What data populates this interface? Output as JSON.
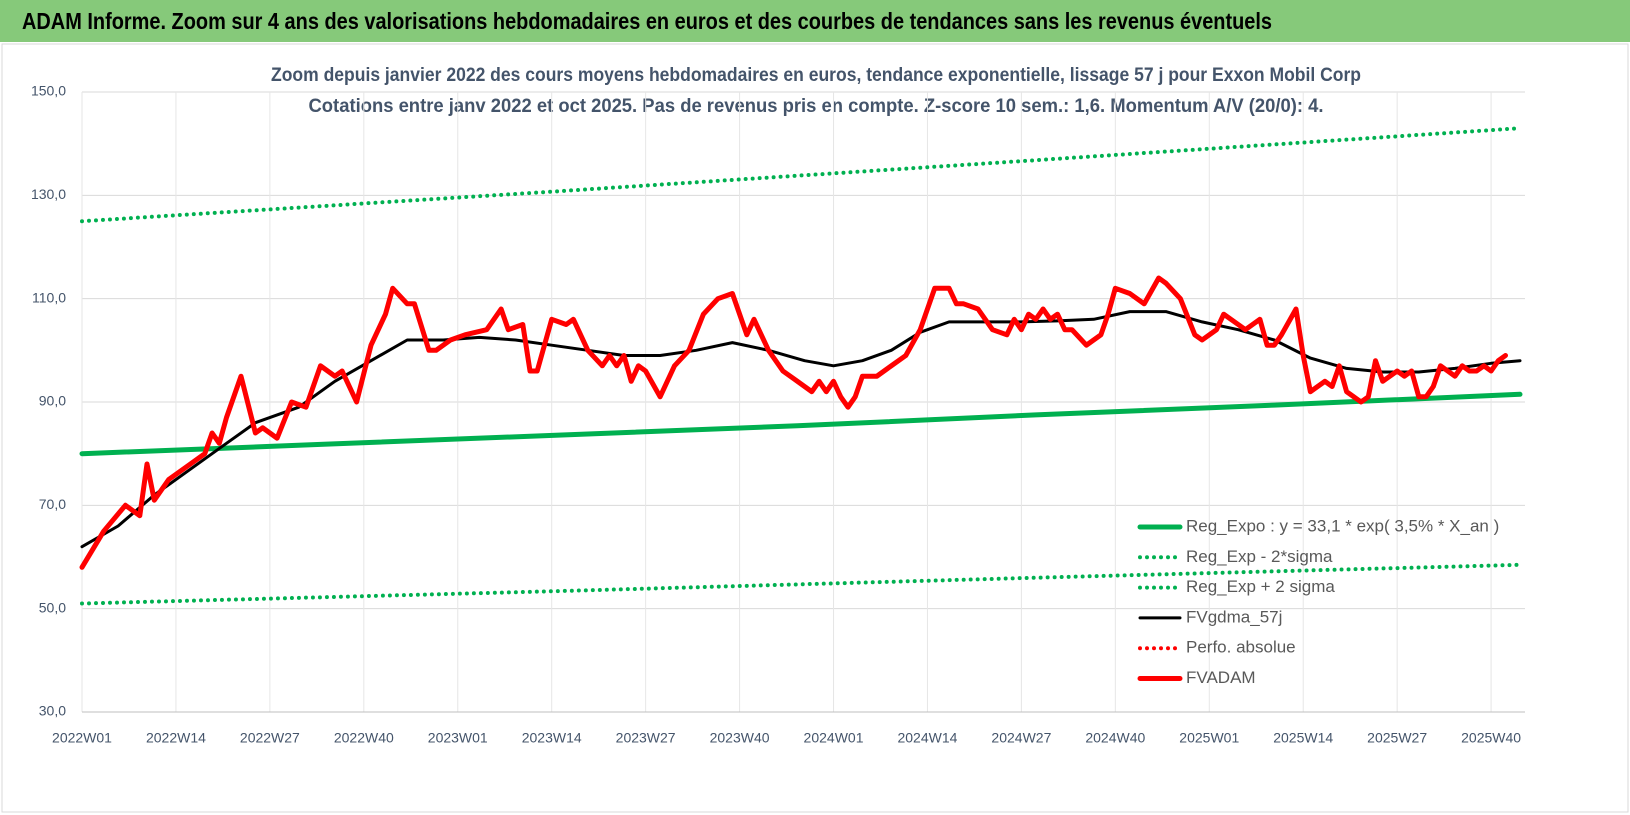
{
  "header": {
    "title": "ADAM Informe. Zoom sur 4 ans des valorisations hebdomadaires en euros et des courbes de tendances sans les revenus éventuels"
  },
  "chart_data": {
    "type": "line",
    "title": "Zoom depuis janvier 2022 des cours moyens hebdomadaires en euros, tendance exponentielle, lissage 57 j pour Exxon Mobil Corp",
    "subtitle": "Cotations entre janv 2022 et oct 2025. Pas de revenus pris en compte. Z-score 10 sem.: 1,6. Momentum A/V (20/0): 4.",
    "xlim": [
      0,
      199
    ],
    "xticks": [
      {
        "value": 0,
        "label": "2022W01"
      },
      {
        "value": 13,
        "label": "2022W14"
      },
      {
        "value": 26,
        "label": "2022W27"
      },
      {
        "value": 39,
        "label": "2022W40"
      },
      {
        "value": 52,
        "label": "2023W01"
      },
      {
        "value": 65,
        "label": "2023W14"
      },
      {
        "value": 78,
        "label": "2023W27"
      },
      {
        "value": 91,
        "label": "2023W40"
      },
      {
        "value": 104,
        "label": "2024W01"
      },
      {
        "value": 117,
        "label": "2024W14"
      },
      {
        "value": 130,
        "label": "2024W27"
      },
      {
        "value": 143,
        "label": "2024W40"
      },
      {
        "value": 156,
        "label": "2025W01"
      },
      {
        "value": 169,
        "label": "2025W14"
      },
      {
        "value": 182,
        "label": "2025W27"
      },
      {
        "value": 195,
        "label": "2025W40"
      }
    ],
    "ylim": [
      30,
      150
    ],
    "yticks": [
      {
        "value": 30,
        "label": "30,0"
      },
      {
        "value": 50,
        "label": "50,0"
      },
      {
        "value": 70,
        "label": "70,0"
      },
      {
        "value": 90,
        "label": "90,0"
      },
      {
        "value": 110,
        "label": "110,0"
      },
      {
        "value": 130,
        "label": "130,0"
      },
      {
        "value": 150,
        "label": "150,0"
      }
    ],
    "grid": true,
    "legend": "lower right",
    "series": [
      {
        "name": "Reg_Expo : y = 33,1 * exp( 3,5% *  X_an )",
        "color": "#00b050",
        "style": "thick",
        "x": [
          0,
          33,
          66,
          99,
          132,
          165,
          199
        ],
        "values": [
          80,
          81.8,
          83.6,
          85.4,
          87.5,
          89.4,
          91.5
        ]
      },
      {
        "name": "Reg_Exp - 2*sigma",
        "color": "#00b050",
        "style": "dotted",
        "x": [
          0,
          66,
          132,
          199
        ],
        "values": [
          51,
          53.4,
          56,
          58.5
        ]
      },
      {
        "name": "Reg_Exp + 2 sigma",
        "color": "#00b050",
        "style": "dotted",
        "x": [
          0,
          66,
          132,
          199
        ],
        "values": [
          125,
          130.8,
          136.8,
          143
        ]
      },
      {
        "name": "FVgdma_57j",
        "color": "#000000",
        "style": "thin",
        "x": [
          0,
          5,
          10,
          15,
          20,
          24,
          30,
          35,
          40,
          45,
          50,
          55,
          60,
          65,
          70,
          75,
          80,
          85,
          90,
          95,
          100,
          104,
          108,
          112,
          116,
          120,
          125,
          130,
          135,
          140,
          145,
          150,
          155,
          160,
          165,
          170,
          175,
          180,
          185,
          190,
          195,
          199
        ],
        "values": [
          62,
          66,
          72,
          77,
          82,
          86,
          89,
          94,
          98,
          102,
          102,
          102.5,
          102,
          101,
          100,
          99,
          99,
          100,
          101.5,
          100,
          98,
          97,
          98,
          100,
          103.5,
          105.5,
          105.5,
          105.5,
          105.7,
          106,
          107.5,
          107.5,
          105.5,
          104,
          102,
          98.5,
          96.5,
          95.8,
          95.8,
          96.5,
          97.5,
          98
        ]
      },
      {
        "name": "Perfo. absolue",
        "color": "#ff0000",
        "style": "dotted",
        "x": [],
        "values": []
      },
      {
        "name": "FVADAM",
        "color": "#ff0000",
        "style": "thick",
        "x": [
          0,
          3,
          6,
          8,
          9,
          10,
          12,
          15,
          17,
          18,
          19,
          20,
          22,
          24,
          25,
          27,
          29,
          31,
          33,
          35,
          36,
          38,
          40,
          42,
          43,
          45,
          46,
          48,
          49,
          51,
          53,
          56,
          58,
          59,
          61,
          62,
          63,
          65,
          67,
          68,
          70,
          72,
          73,
          74,
          75,
          76,
          77,
          78,
          80,
          82,
          84,
          86,
          88,
          90,
          92,
          93,
          95,
          97,
          99,
          101,
          102,
          103,
          104,
          105,
          106,
          107,
          108,
          110,
          112,
          114,
          116,
          118,
          120,
          121,
          122,
          124,
          126,
          128,
          129,
          130,
          131,
          132,
          133,
          134,
          135,
          136,
          137,
          139,
          141,
          142,
          143,
          145,
          147,
          149,
          150,
          152,
          154,
          155,
          157,
          158,
          160,
          161,
          162,
          163,
          164,
          165,
          166,
          168,
          169,
          170,
          172,
          173,
          174,
          175,
          176,
          177,
          178,
          179,
          180,
          182,
          183,
          184,
          185,
          186,
          187,
          188,
          189,
          190,
          191,
          192,
          193,
          194,
          195,
          196,
          197
        ],
        "values": [
          58,
          65,
          70,
          68,
          78,
          71,
          75,
          78,
          80,
          84,
          82,
          87,
          95,
          84,
          85,
          83,
          90,
          89,
          97,
          95,
          96,
          90,
          101,
          107,
          112,
          109,
          109,
          100,
          100,
          102,
          103,
          104,
          108,
          104,
          105,
          96,
          96,
          106,
          105,
          106,
          100,
          97,
          99,
          97,
          99,
          94,
          97,
          96,
          91,
          97,
          100,
          107,
          110,
          111,
          103,
          106,
          100,
          96,
          94,
          92,
          94,
          92,
          94,
          91,
          89,
          91,
          95,
          95,
          97,
          99,
          104,
          112,
          112,
          109,
          109,
          108,
          104,
          103,
          106,
          104,
          107,
          106,
          108,
          106,
          107,
          104,
          104,
          101,
          103,
          107,
          112,
          111,
          109,
          114,
          113,
          110,
          103,
          102,
          104,
          107,
          105,
          104,
          105,
          106,
          101,
          101,
          103,
          108,
          99,
          92,
          94,
          93,
          97,
          92,
          91,
          90,
          91,
          98,
          94,
          96,
          95,
          96,
          91,
          91,
          93,
          97,
          96,
          95,
          97,
          96,
          96,
          97,
          96,
          98,
          99
        ]
      }
    ]
  }
}
